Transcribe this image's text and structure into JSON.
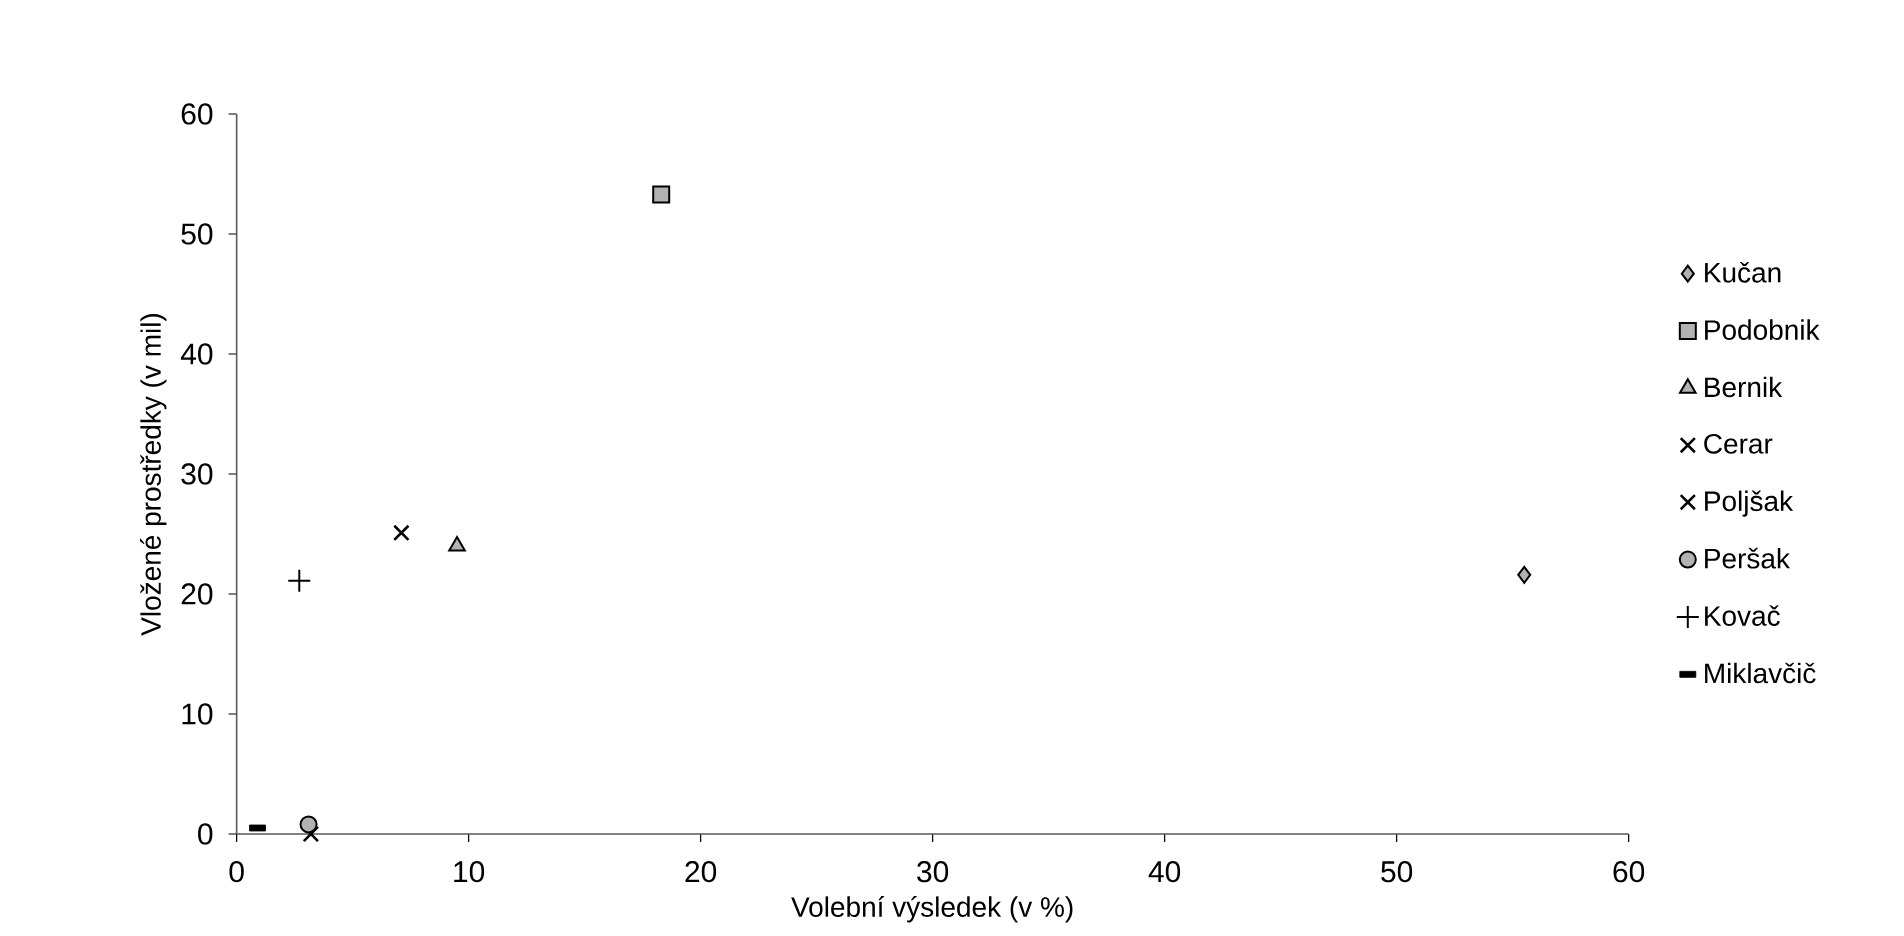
{
  "chart_data": {
    "type": "scatter",
    "xlabel": "Volební výsledek (v %)",
    "ylabel": "Vložené prostředky (v mil)",
    "xlim": [
      0,
      60
    ],
    "xticks": [
      0,
      10,
      20,
      30,
      40,
      50,
      60
    ],
    "ylim": [
      0,
      60
    ],
    "yticks": [
      0,
      10,
      20,
      30,
      40,
      50,
      60
    ],
    "grid": false,
    "legend": "right",
    "series": [
      {
        "name": "Kučan",
        "color": "#000000",
        "marker": "diamond",
        "x": [
          55.5
        ],
        "values": [
          21.6
        ]
      },
      {
        "name": "Podobnik",
        "color": "#000000",
        "marker": "square",
        "x": [
          18.3
        ],
        "values": [
          53.3
        ]
      },
      {
        "name": "Bernik",
        "color": "#000000",
        "marker": "triangle",
        "x": [
          9.5
        ],
        "values": [
          24.0
        ]
      },
      {
        "name": "Cerar",
        "color": "#000000",
        "marker": "cross",
        "x": [
          7.1
        ],
        "values": [
          25.1
        ]
      },
      {
        "name": "Poljšak",
        "color": "#000000",
        "marker": "cross",
        "x": [
          3.2
        ],
        "values": [
          0
        ]
      },
      {
        "name": "Peršak",
        "color": "#000000",
        "marker": "circle",
        "x": [
          3.1
        ],
        "values": [
          0.8
        ]
      },
      {
        "name": "Kovač",
        "color": "#000000",
        "marker": "plus",
        "x": [
          2.7
        ],
        "values": [
          21.1
        ]
      },
      {
        "name": "Miklavčič",
        "color": "#000000",
        "marker": "square",
        "x": [
          0.9
        ],
        "values": [
          0.5
        ]
      }
    ]
  }
}
